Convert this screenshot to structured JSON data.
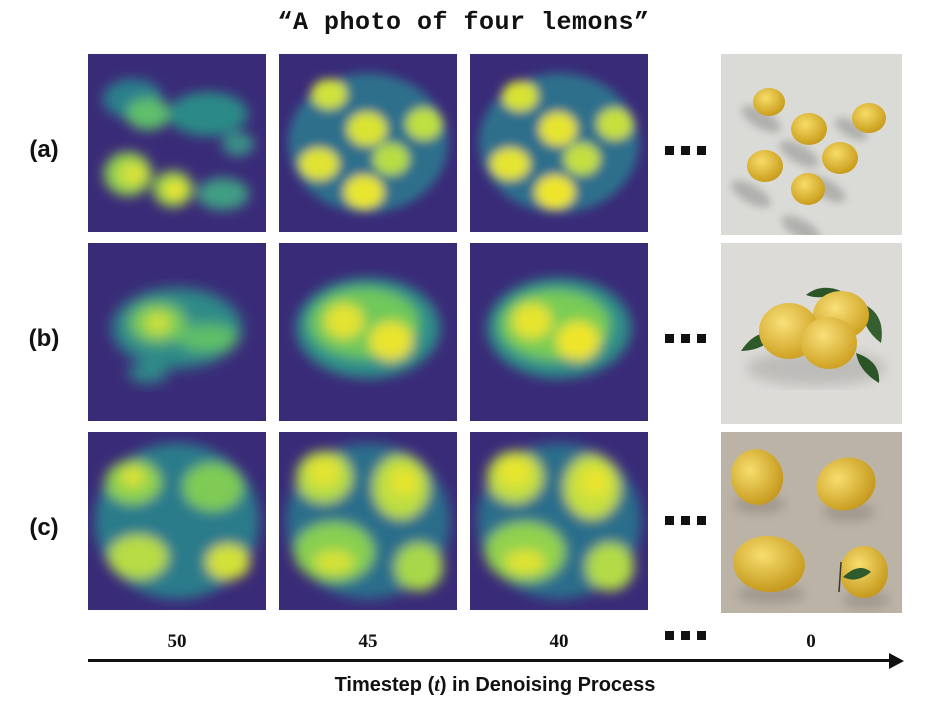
{
  "title": "“A photo of four lemons”",
  "rows": [
    {
      "label": "(a)"
    },
    {
      "label": "(b)"
    },
    {
      "label": "(c)"
    }
  ],
  "timesteps": [
    "50",
    "45",
    "40",
    "0"
  ],
  "axis": {
    "label_before": "Timestep (",
    "label_var": "t",
    "label_after": ") in Denoising Process"
  },
  "colors": {
    "heat_low": "#3b2a7a",
    "heat_mid": "#2f8f8a",
    "heat_high": "#f2e62a",
    "lemon": "#e9c53a",
    "leaf": "#2f5b2c",
    "bg_a": "#d9d9d6",
    "bg_b": "#dcdbd8",
    "bg_c": "#bdb4a8"
  }
}
